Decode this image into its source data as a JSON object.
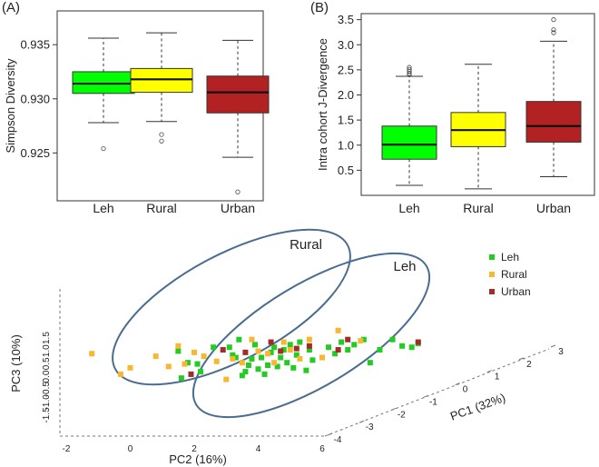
{
  "chart_data": [
    {
      "type": "box",
      "panel_label": "(A)",
      "ylabel": "Simpson Diversity",
      "ylim": [
        0.921,
        0.9377
      ],
      "y_ticks": [
        0.925,
        0.93,
        0.935
      ],
      "y_tick_labels": [
        "0.925",
        "0.930",
        "0.935"
      ],
      "categories": [
        "Leh",
        "Rural",
        "Urban"
      ],
      "boxes": [
        {
          "name": "Leh",
          "color": "#00ff00",
          "whisker_low": 0.9278,
          "q1": 0.9305,
          "median": 0.9314,
          "q3": 0.9325,
          "whisker_high": 0.9356,
          "outliers": [
            0.9254
          ]
        },
        {
          "name": "Rural",
          "color": "#ffff00",
          "whisker_low": 0.9279,
          "q1": 0.9306,
          "median": 0.9318,
          "q3": 0.9328,
          "whisker_high": 0.9361,
          "outliers": [
            0.9267,
            0.9261
          ]
        },
        {
          "name": "Urban",
          "color": "#b22222",
          "whisker_low": 0.9246,
          "q1": 0.9287,
          "median": 0.9306,
          "q3": 0.9321,
          "whisker_high": 0.9354,
          "outliers": [
            0.9214
          ]
        }
      ]
    },
    {
      "type": "box",
      "panel_label": "(B)",
      "ylabel": "Intra cohort J-Divergence",
      "ylim": [
        0.0,
        3.62
      ],
      "y_ticks": [
        0.5,
        1.0,
        1.5,
        2.0,
        2.5,
        3.0,
        3.5
      ],
      "y_tick_labels": [
        "0.5",
        "1.0",
        "1.5",
        "2.0",
        "2.5",
        "3.0",
        "3.5"
      ],
      "categories": [
        "Leh",
        "Rural",
        "Urban"
      ],
      "boxes": [
        {
          "name": "Leh",
          "color": "#00ff00",
          "whisker_low": 0.2,
          "q1": 0.72,
          "median": 1.01,
          "q3": 1.38,
          "whisker_high": 2.37,
          "outliers": [
            2.4,
            2.43,
            2.47,
            2.51,
            2.55
          ]
        },
        {
          "name": "Rural",
          "color": "#ffff00",
          "whisker_low": 0.13,
          "q1": 0.97,
          "median": 1.3,
          "q3": 1.65,
          "whisker_high": 2.61,
          "outliers": []
        },
        {
          "name": "Urban",
          "color": "#b22222",
          "whisker_low": 0.37,
          "q1": 1.06,
          "median": 1.38,
          "q3": 1.87,
          "whisker_high": 3.07,
          "outliers": [
            3.24,
            3.3,
            3.5
          ]
        }
      ]
    },
    {
      "type": "scatter3d",
      "xlabel": "PC2 (16%)",
      "ylabel": "PC3 (10%)",
      "zlabel": "PC1 (32%)",
      "x_ticks": [
        "-2",
        "0",
        "2",
        "4",
        "6"
      ],
      "y_ticks": [
        "1.5",
        "1.0",
        "0.5",
        "0.0",
        "-0.5",
        "-1.0",
        "-1.5"
      ],
      "z_ticks": [
        "-4",
        "-3",
        "-2",
        "-1",
        "0",
        "1",
        "2",
        "3"
      ],
      "legend": [
        {
          "name": "Leh",
          "color": "#22cc22"
        },
        {
          "name": "Rural",
          "color": "#f7b733"
        },
        {
          "name": "Urban",
          "color": "#a52a2a"
        }
      ],
      "ellipse_labels": [
        "Rural",
        "Leh"
      ],
      "series": [
        {
          "name": "Leh",
          "color": "#22cc22",
          "points": [
            [
              1.5,
              0.85
            ],
            [
              1.6,
              -0.2
            ],
            [
              1.8,
              0.4
            ],
            [
              2.1,
              0.35
            ],
            [
              2.2,
              0.05
            ],
            [
              2.6,
              1.0
            ],
            [
              3.1,
              1.0
            ],
            [
              3.2,
              0.7
            ],
            [
              3.3,
              0.6
            ],
            [
              3.4,
              1.3
            ],
            [
              3.5,
              -0.1
            ],
            [
              3.6,
              0.05
            ],
            [
              3.7,
              0.3
            ],
            [
              3.8,
              0.55
            ],
            [
              3.9,
              1.1
            ],
            [
              4.0,
              0.15
            ],
            [
              4.1,
              0.6
            ],
            [
              4.2,
              -0.05
            ],
            [
              4.3,
              0.3
            ],
            [
              4.4,
              0.8
            ],
            [
              4.5,
              1.0
            ],
            [
              4.6,
              0.25
            ],
            [
              4.7,
              0.6
            ],
            [
              4.8,
              0.9
            ],
            [
              4.9,
              0.4
            ],
            [
              5.0,
              1.1
            ],
            [
              5.1,
              0.2
            ],
            [
              5.2,
              0.7
            ],
            [
              5.3,
              1.2
            ],
            [
              5.5,
              0.1
            ],
            [
              5.6,
              0.9
            ],
            [
              5.7,
              0.5
            ],
            [
              6.0,
              0.6
            ],
            [
              6.2,
              1.0
            ],
            [
              6.4,
              0.75
            ],
            [
              6.6,
              1.2
            ],
            [
              6.8,
              0.9
            ],
            [
              7.0,
              1.1
            ],
            [
              7.3,
              1.3
            ],
            [
              7.5,
              0.4
            ],
            [
              7.8,
              0.9
            ],
            [
              8.2,
              1.3
            ],
            [
              8.5,
              1.05
            ],
            [
              8.8,
              1.0
            ],
            [
              9.0,
              1.15
            ]
          ]
        },
        {
          "name": "Rural",
          "color": "#f7b733",
          "points": [
            [
              -1.2,
              0.75
            ],
            [
              -0.3,
              -0.05
            ],
            [
              0.0,
              0.2
            ],
            [
              0.8,
              0.65
            ],
            [
              1.2,
              0.25
            ],
            [
              1.5,
              1.05
            ],
            [
              1.7,
              0.35
            ],
            [
              2.0,
              0.8
            ],
            [
              2.3,
              0.65
            ],
            [
              2.7,
              0.45
            ],
            [
              3.0,
              -0.25
            ],
            [
              3.2,
              0.55
            ],
            [
              3.5,
              0.4
            ],
            [
              3.8,
              1.3
            ],
            [
              4.0,
              0.85
            ],
            [
              4.3,
              0.75
            ],
            [
              4.5,
              0.4
            ],
            [
              4.8,
              1.2
            ],
            [
              5.0,
              0.9
            ],
            [
              5.3,
              0.55
            ],
            [
              5.6,
              1.3
            ],
            [
              6.0,
              0.6
            ],
            [
              6.5,
              1.65
            ],
            [
              7.2,
              1.25
            ]
          ]
        },
        {
          "name": "Urban",
          "color": "#a52a2a",
          "points": [
            [
              1.9,
              -0.05
            ],
            [
              2.9,
              0.9
            ],
            [
              3.6,
              0.8
            ],
            [
              4.4,
              1.2
            ],
            [
              4.7,
              0.85
            ],
            [
              5.2,
              0.95
            ],
            [
              5.6,
              1.05
            ],
            [
              6.5,
              0.9
            ],
            [
              6.8,
              1.3
            ],
            [
              9.0,
              1.2
            ]
          ]
        }
      ]
    }
  ]
}
